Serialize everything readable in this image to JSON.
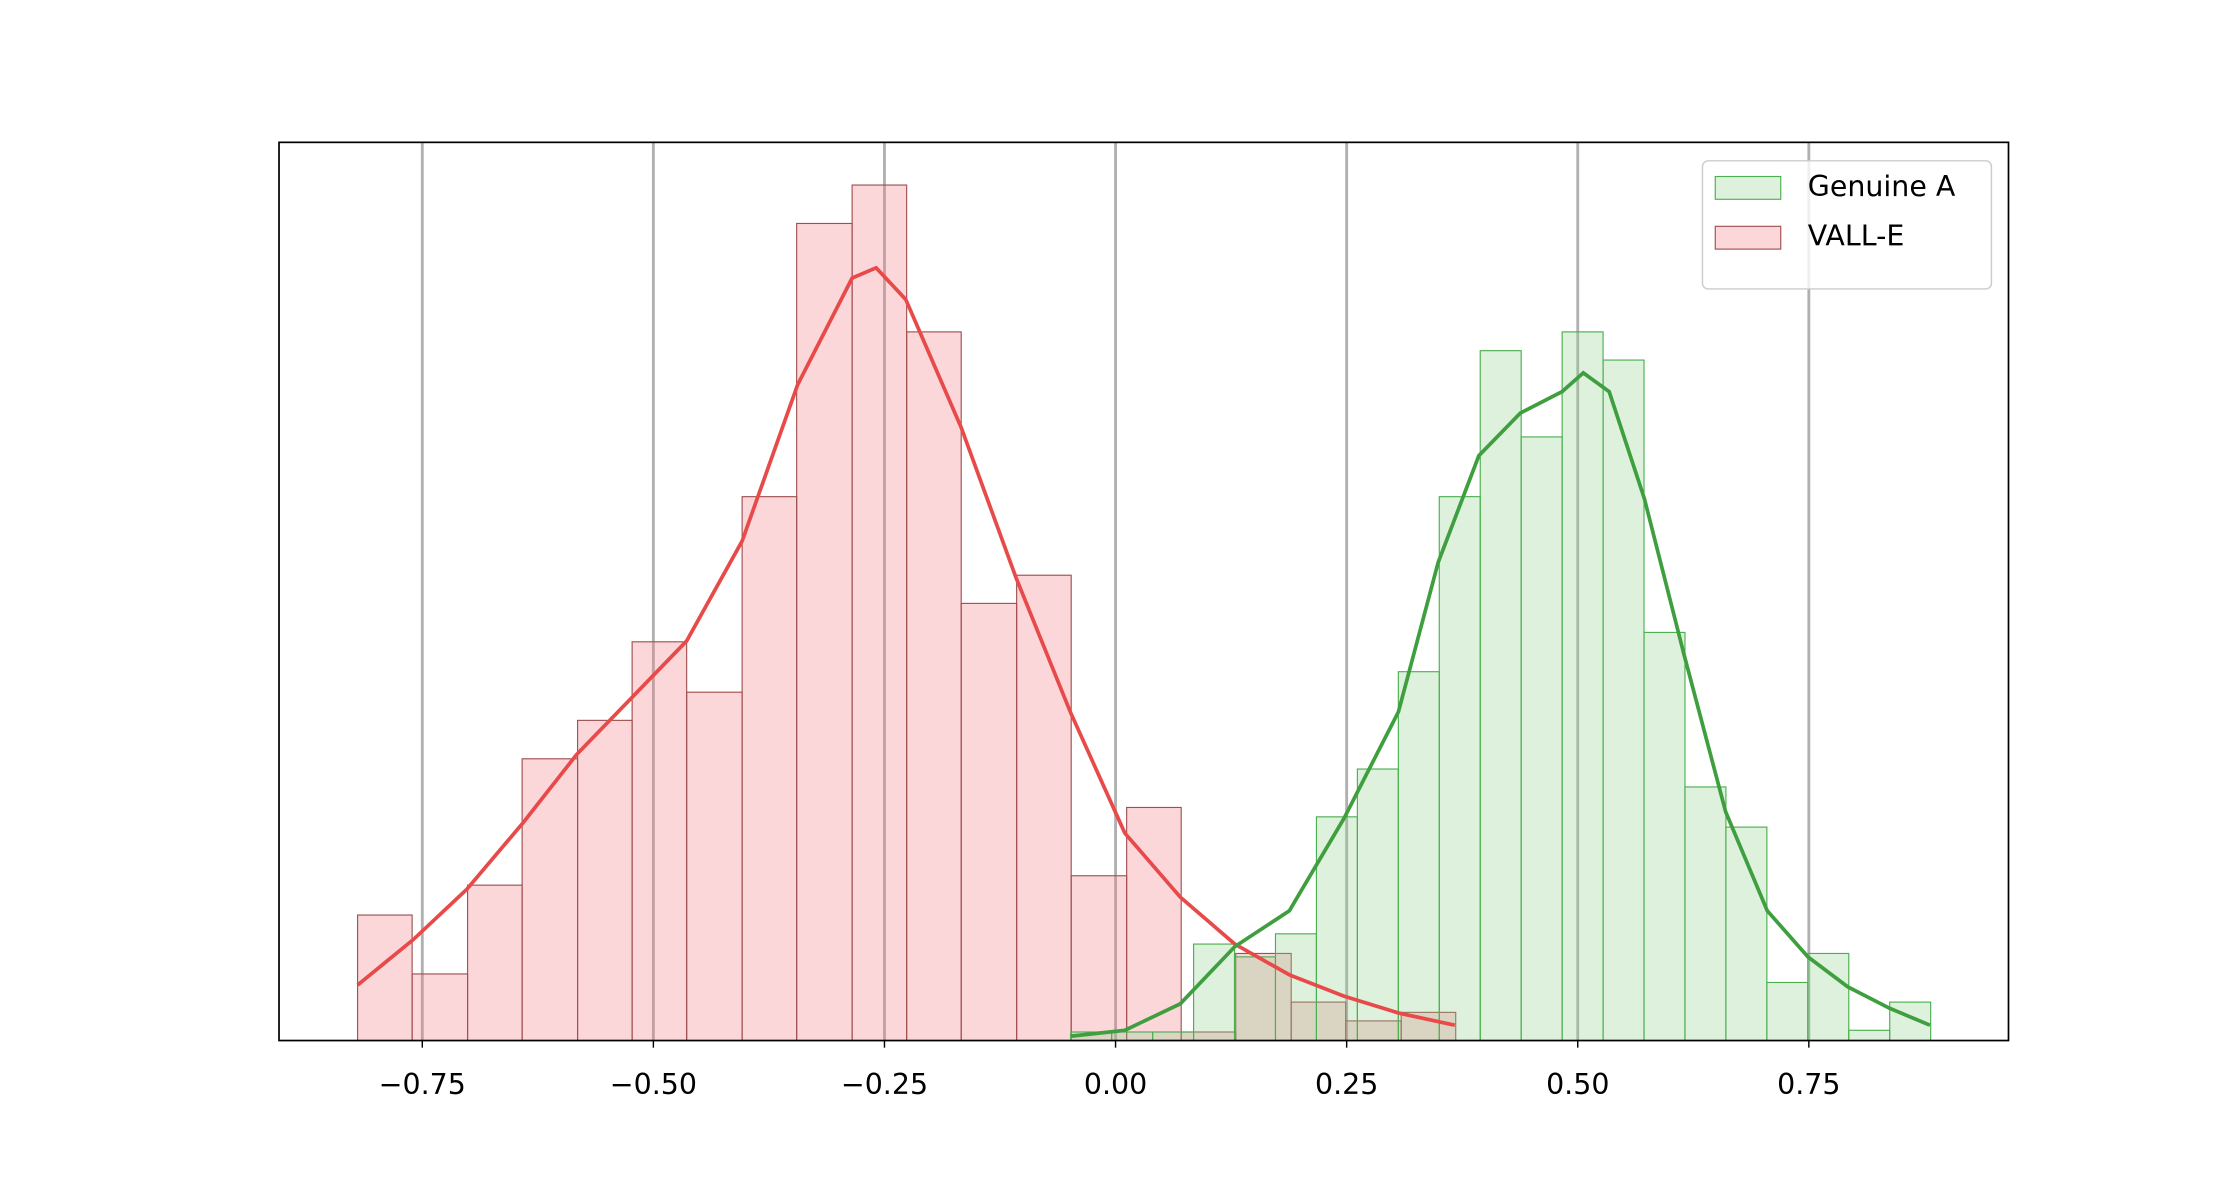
{
  "chart_data": {
    "type": "histogram",
    "xlim": [
      -0.905,
      0.966
    ],
    "ylim": [
      0,
      105.2
    ],
    "xticks": [
      {
        "value": -0.75,
        "label": "−0.75"
      },
      {
        "value": -0.5,
        "label": "−0.50"
      },
      {
        "value": -0.25,
        "label": "−0.25"
      },
      {
        "value": 0,
        "label": "0.00"
      },
      {
        "value": 0.25,
        "label": "0.25"
      },
      {
        "value": 0.5,
        "label": "0.50"
      },
      {
        "value": 0.75,
        "label": "0.75"
      }
    ],
    "grid": "x",
    "legend": "upper right",
    "series": [
      {
        "name": "VALL-E",
        "color": "#e84a4a",
        "fill": "#f27b86",
        "edge": "#a05050",
        "bins": [
          -0.82,
          -0.761,
          -0.701,
          -0.642,
          -0.582,
          -0.523,
          -0.464,
          -0.404,
          -0.345,
          -0.285,
          -0.226,
          -0.167,
          -0.107,
          -0.048,
          0.012,
          0.071,
          0.13,
          0.19,
          0.249,
          0.309,
          0.368
        ],
        "values": [
          14.7,
          7.8,
          18.2,
          33,
          37.5,
          46.7,
          40.8,
          63.7,
          95.7,
          100.2,
          83,
          51.2,
          54.5,
          19.3,
          27.3,
          1,
          10.2,
          4.5,
          2.3,
          3.3
        ],
        "kde": {
          "x": [
            -0.82,
            -0.76,
            -0.702,
            -0.641,
            -0.583,
            -0.523,
            -0.464,
            -0.404,
            -0.344,
            -0.285,
            -0.259,
            -0.227,
            -0.167,
            -0.108,
            -0.049,
            0.01,
            0.07,
            0.129,
            0.188,
            0.247,
            0.307,
            0.367
          ],
          "values": [
            6.5,
            11.8,
            17.7,
            25.5,
            33.5,
            40.2,
            46.8,
            58.5,
            76.8,
            89.3,
            90.5,
            86.8,
            71.8,
            54.3,
            38.5,
            24.3,
            16.8,
            11.3,
            7.7,
            5.2,
            3.2,
            1.8
          ]
        }
      },
      {
        "name": "Genuine A",
        "color": "#3f9f3f",
        "fill": "#8fd08f",
        "edge": "#4caf50",
        "bins": [
          -0.0485,
          -0.0042,
          0.0401,
          0.0844,
          0.1287,
          0.173,
          0.2173,
          0.2616,
          0.3059,
          0.3502,
          0.3945,
          0.4388,
          0.4831,
          0.5274,
          0.5717,
          0.616,
          0.6603,
          0.7046,
          0.7489,
          0.7932,
          0.8375,
          0.8818
        ],
        "values": [
          1,
          1,
          1,
          11.3,
          9.8,
          12.5,
          26.2,
          31.8,
          43.2,
          63.7,
          80.8,
          70.7,
          83,
          79.7,
          47.8,
          29.7,
          25,
          6.8,
          10.2,
          1.2,
          4.5
        ],
        "kde": {
          "x": [
            -0.049,
            0.01,
            0.07,
            0.129,
            0.188,
            0.247,
            0.306,
            0.349,
            0.393,
            0.438,
            0.483,
            0.506,
            0.534,
            0.572,
            0.615,
            0.66,
            0.705,
            0.749,
            0.792,
            0.837,
            0.881
          ],
          "values": [
            0.5,
            1.2,
            4.3,
            11,
            15.2,
            26,
            38.5,
            56,
            68.5,
            73.5,
            76,
            78.2,
            76,
            63.5,
            45.2,
            26.8,
            15.2,
            9.8,
            6.3,
            3.8,
            1.8
          ]
        }
      }
    ]
  }
}
